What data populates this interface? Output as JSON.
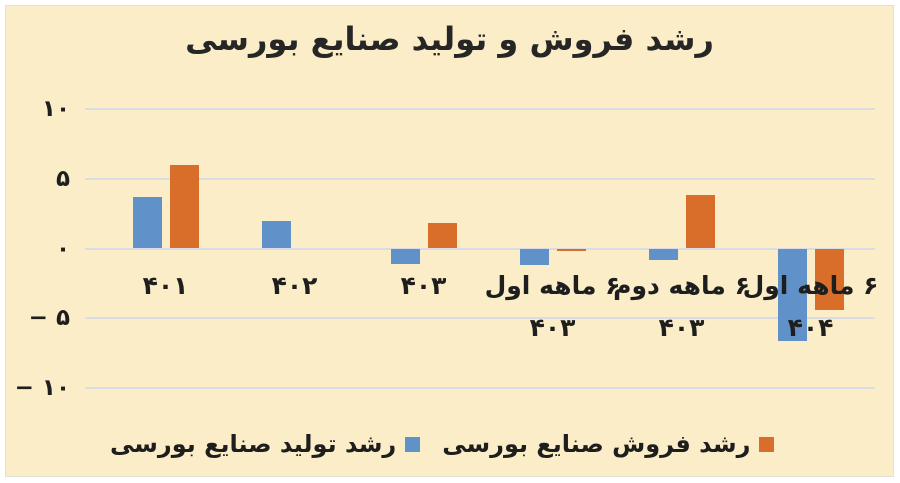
{
  "title": "رشد فروش و تولید صنایع بورسی",
  "colors": {
    "background": "#FAEDC7",
    "frame": "#FFFFFF",
    "gridline": "#D9DCE5",
    "text": "#1E1E1E",
    "production_blue": "#6091C9",
    "sales_orange": "#D96E2B"
  },
  "y_axis": {
    "tick_labels": [
      "۱۰",
      "۵",
      "۰",
      "− ۵",
      "− ۱۰"
    ],
    "tick_values": [
      10,
      5,
      0,
      -5,
      -10
    ]
  },
  "x_axis": {
    "labels": [
      [
        "۴۰۱"
      ],
      [
        "۴۰۲"
      ],
      [
        "۴۰۳"
      ],
      [
        "۶ ماهه اول",
        "۴۰۳"
      ],
      [
        "۶ ماهه دوم",
        "۴۰۳"
      ],
      [
        "۶ ماهه اول",
        "۴۰۴"
      ]
    ]
  },
  "legend": {
    "items": [
      {
        "label": "رشد تولید صنایع بورسی",
        "color": "#6091C9",
        "series_key": "production"
      },
      {
        "label": "رشد فروش صنایع بورسی",
        "color": "#D96E2B",
        "series_key": "sales"
      }
    ]
  },
  "chart_data": {
    "type": "bar",
    "title": "رشد فروش و تولید صنایع بورسی",
    "categories": [
      "۴۰۱",
      "۴۰۲",
      "۴۰۳",
      "۶ ماهه اول ۴۰۳",
      "۶ ماهه دوم ۴۰۳",
      "۶ ماهه اول ۴۰۴"
    ],
    "series": [
      {
        "name": "رشد تولید صنایع بورسی",
        "key": "production",
        "color": "#6091C9",
        "values": [
          3.7,
          2.0,
          -1.1,
          -1.2,
          -0.8,
          -6.6
        ]
      },
      {
        "name": "رشد فروش صنایع بورسی",
        "key": "sales",
        "color": "#D96E2B",
        "values": [
          6.0,
          0.0,
          1.8,
          -0.2,
          3.8,
          -4.4
        ]
      }
    ],
    "ylim": [
      -10,
      10
    ],
    "yticks": [
      10,
      5,
      0,
      -5,
      -10
    ],
    "grid": true,
    "legend_position": "bottom",
    "rtl": true
  }
}
